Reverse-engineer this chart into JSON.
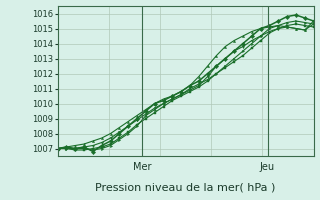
{
  "bg_color": "#d8f0e8",
  "grid_color": "#b0c8b8",
  "line_color": "#1a6e2a",
  "marker_color": "#1a6e2a",
  "xlabel": "Pression niveau de la mer( hPa )",
  "xlabel_fontsize": 8,
  "day_labels": [
    "Mer",
    "Jeu"
  ],
  "day_positions": [
    0.33,
    0.82
  ],
  "ylim": [
    1006.5,
    1016.5
  ],
  "yticks": [
    1007,
    1008,
    1009,
    1010,
    1011,
    1012,
    1013,
    1014,
    1015,
    1016
  ],
  "num_points": 30,
  "series": [
    [
      1007.0,
      1007.1,
      1007.0,
      1007.1,
      1006.8,
      1007.2,
      1007.5,
      1008.0,
      1008.5,
      1009.0,
      1009.5,
      1010.0,
      1010.2,
      1010.5,
      1010.8,
      1011.2,
      1011.5,
      1012.0,
      1012.5,
      1013.0,
      1013.5,
      1014.0,
      1014.5,
      1015.0,
      1015.2,
      1015.5,
      1015.8,
      1015.9,
      1015.7,
      1015.5
    ],
    [
      1007.0,
      1007.0,
      1007.0,
      1007.0,
      1006.9,
      1007.0,
      1007.2,
      1007.6,
      1008.0,
      1008.5,
      1009.2,
      1009.6,
      1010.0,
      1010.3,
      1010.6,
      1011.0,
      1011.3,
      1011.6,
      1012.0,
      1012.5,
      1013.0,
      1013.5,
      1014.0,
      1014.5,
      1015.0,
      1015.2,
      1015.4,
      1015.5,
      1015.4,
      1015.3
    ],
    [
      1007.0,
      1007.0,
      1006.9,
      1006.9,
      1007.0,
      1007.1,
      1007.3,
      1007.7,
      1008.1,
      1008.6,
      1009.0,
      1009.4,
      1009.8,
      1010.2,
      1010.5,
      1010.8,
      1011.1,
      1011.5,
      1012.0,
      1012.4,
      1012.8,
      1013.2,
      1013.7,
      1014.2,
      1014.7,
      1015.0,
      1015.2,
      1015.3,
      1015.2,
      1015.1
    ],
    [
      1007.0,
      1007.1,
      1007.2,
      1007.3,
      1007.5,
      1007.7,
      1008.0,
      1008.4,
      1008.8,
      1009.2,
      1009.6,
      1010.0,
      1010.3,
      1010.5,
      1010.8,
      1011.2,
      1011.8,
      1012.5,
      1013.2,
      1013.8,
      1014.2,
      1014.5,
      1014.8,
      1015.0,
      1015.1,
      1015.2,
      1015.1,
      1015.0,
      1014.9,
      1015.5
    ],
    [
      1007.0,
      1007.0,
      1007.0,
      1007.1,
      1007.2,
      1007.4,
      1007.7,
      1008.1,
      1008.5,
      1008.9,
      1009.3,
      1009.7,
      1010.0,
      1010.3,
      1010.6,
      1010.9,
      1011.2,
      1011.8,
      1012.5,
      1013.0,
      1013.5,
      1013.8,
      1014.2,
      1014.5,
      1014.8,
      1015.0,
      1015.1,
      1015.0,
      1014.9,
      1015.3
    ]
  ]
}
